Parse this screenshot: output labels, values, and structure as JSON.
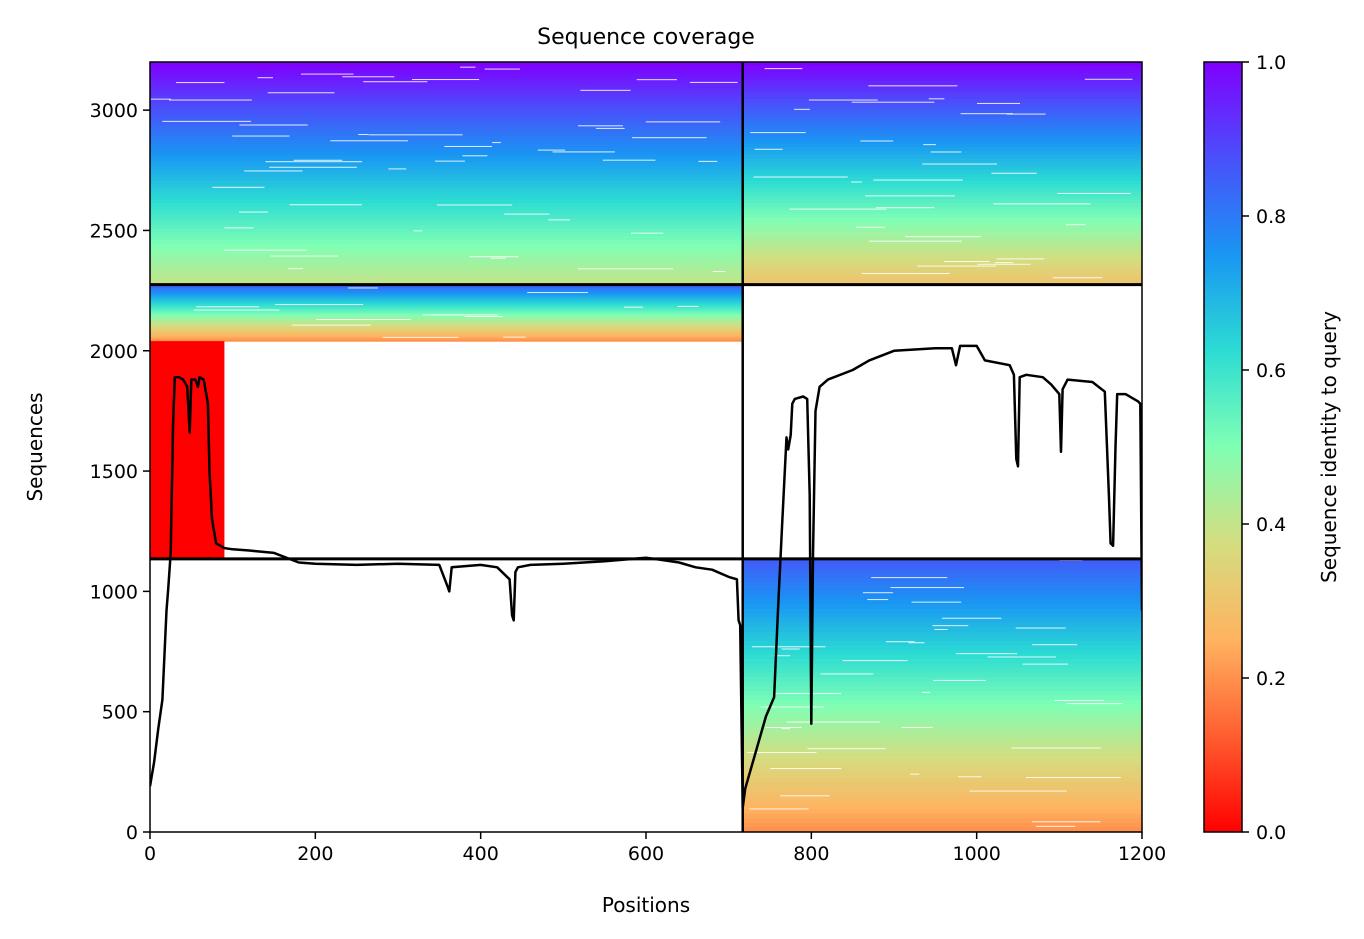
{
  "chart_data": {
    "type": "heatmap",
    "title": "Sequence coverage",
    "xlabel": "Positions",
    "ylabel": "Sequences",
    "colorbar_label": "Sequence identity to query",
    "xlim": [
      0,
      1200
    ],
    "ylim": [
      0,
      3200
    ],
    "x_ticks": [
      0,
      200,
      400,
      600,
      800,
      1000,
      1200
    ],
    "y_ticks": [
      0,
      500,
      1000,
      1500,
      2000,
      2500,
      3000
    ],
    "colorbar_range": [
      0,
      1
    ],
    "colorbar_ticks": [
      "0.0",
      "0.2",
      "0.4",
      "0.6",
      "0.8",
      "1.0"
    ],
    "colormap": "rainbow_r",
    "grid": false,
    "chain_boundaries_x": [
      717
    ],
    "block_boundaries_y": [
      1135,
      2275
    ],
    "coverage_blocks": [
      {
        "name": "region 1",
        "x_range": [
          0,
          717
        ],
        "y_range": [
          2275,
          3200
        ],
        "identity_top": 1.0,
        "identity_bottom": 0.4
      },
      {
        "name": "region 2",
        "x_range": [
          717,
          1200
        ],
        "y_range": [
          2275,
          3200
        ],
        "identity_top": 1.0,
        "identity_bottom": 0.3
      },
      {
        "name": "region 3",
        "x_range": [
          0,
          717
        ],
        "y_range": [
          2040,
          2275
        ],
        "identity_top": 0.85,
        "identity_bottom": 0.2
      },
      {
        "name": "region 4",
        "x_range": [
          0,
          90
        ],
        "y_range": [
          1135,
          2040
        ],
        "identity_top": 0.0,
        "identity_bottom": 0.0
      },
      {
        "name": "region 5",
        "x_range": [
          717,
          1200
        ],
        "y_range": [
          0,
          1135
        ],
        "identity_top": 0.85,
        "identity_bottom": 0.2
      }
    ],
    "coverage_line": {
      "x": [
        0,
        5,
        10,
        15,
        20,
        22,
        25,
        28,
        30,
        35,
        40,
        45,
        48,
        50,
        52,
        55,
        58,
        60,
        65,
        70,
        72,
        75,
        80,
        90,
        100,
        120,
        150,
        180,
        200,
        250,
        300,
        350,
        360,
        362,
        365,
        400,
        420,
        435,
        438,
        440,
        442,
        445,
        460,
        500,
        550,
        600,
        640,
        660,
        680,
        700,
        710,
        712,
        714,
        717,
        720,
        730,
        745,
        755,
        760,
        765,
        770,
        772,
        775,
        777,
        780,
        790,
        795,
        798,
        800,
        802,
        805,
        810,
        820,
        850,
        870,
        900,
        950,
        970,
        975,
        980,
        1000,
        1010,
        1040,
        1045,
        1048,
        1050,
        1052,
        1060,
        1080,
        1090,
        1100,
        1102,
        1104,
        1110,
        1140,
        1155,
        1160,
        1162,
        1165,
        1168,
        1170,
        1180,
        1195,
        1198,
        1200
      ],
      "y": [
        190,
        290,
        430,
        550,
        920,
        1010,
        1160,
        1700,
        1890,
        1890,
        1880,
        1850,
        1660,
        1880,
        1880,
        1880,
        1850,
        1890,
        1880,
        1780,
        1500,
        1300,
        1200,
        1180,
        1175,
        1170,
        1160,
        1120,
        1115,
        1110,
        1115,
        1110,
        1020,
        1000,
        1100,
        1110,
        1100,
        1050,
        900,
        880,
        1080,
        1100,
        1110,
        1115,
        1125,
        1140,
        1120,
        1100,
        1090,
        1060,
        1050,
        880,
        860,
        100,
        180,
        300,
        480,
        560,
        950,
        1300,
        1640,
        1590,
        1650,
        1780,
        1800,
        1810,
        1800,
        1400,
        450,
        1150,
        1750,
        1850,
        1880,
        1920,
        1960,
        2000,
        2010,
        2010,
        1940,
        2020,
        2020,
        1960,
        1940,
        1900,
        1550,
        1520,
        1890,
        1900,
        1890,
        1860,
        1820,
        1580,
        1840,
        1880,
        1870,
        1830,
        1400,
        1200,
        1190,
        1600,
        1820,
        1820,
        1790,
        1780,
        920
      ]
    }
  }
}
